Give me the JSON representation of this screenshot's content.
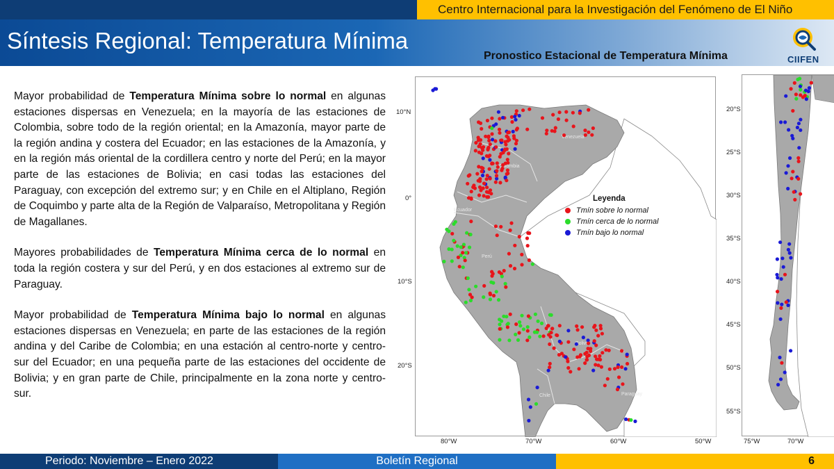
{
  "header": {
    "organization": "Centro Internacional para la Investigación del Fenómeno de El Niño",
    "title": "Síntesis Regional: Temperatura Mínima",
    "map_heading": "Pronostico Estacional de Temperatura Mínima",
    "logo_text": "CIIFEN",
    "logo_icon": "magnifier-globe-icon"
  },
  "body": {
    "paragraphs": [
      {
        "pre": "Mayor probabilidad de ",
        "bold": "Temperatura Mínima sobre lo normal",
        "post": " en algunas estaciones dispersas en Venezuela; en la mayoría de las estaciones de Colombia, sobre todo de la región oriental; en la Amazonía, mayor parte de la región andina y costera del Ecuador; en las estaciones de la Amazonía, y en la región más oriental de la cordillera centro y norte del Perú; en la mayor parte de las estaciones de Bolivia; en casi todas las estaciones del Paraguay, con excepción del extremo sur; y en Chile en el Altiplano, Región de Coquimbo y parte alta de la Región de Valparaíso, Metropolitana y Región de Magallanes."
      },
      {
        "pre": "Mayores probabilidades de ",
        "bold": "Temperatura Mínima cerca de lo normal",
        "post": " en toda la región costera y sur del Perú, y en dos estaciones al extremo sur de Paraguay."
      },
      {
        "pre": "Mayor probabilidad de ",
        "bold": "Temperatura Mínima bajo lo normal",
        "post": " en algunas estaciones dispersas en Venezuela; en parte de las estaciones de la región andina y del Caribe de Colombia; en una estación al centro-norte y centro-sur del Ecuador; en una pequeña parte de las estaciones del occidente de Bolivia; y en gran parte de Chile, principalmente en la zona norte y centro-sur."
      }
    ]
  },
  "map_main": {
    "lat_labels": [
      "10°N",
      "0°",
      "10°S",
      "20°S"
    ],
    "lon_labels": [
      "80°W",
      "70°W",
      "60°W",
      "50°W"
    ],
    "country_labels": [
      "Venezuela",
      "Colombia",
      "Ecuador",
      "Perú",
      "Bolivia",
      "Chile",
      "Paraguay"
    ],
    "legend": {
      "title": "Leyenda",
      "items": [
        {
          "label": "Tmín sobre lo normal",
          "color": "#e8141b"
        },
        {
          "label": "Tmín cerca de lo normal",
          "color": "#2bdc2b"
        },
        {
          "label": "Tmín bajo lo normal",
          "color": "#1a1ad6"
        }
      ]
    }
  },
  "map_chile": {
    "lat_labels": [
      "20°S",
      "25°S",
      "30°S",
      "35°S",
      "40°S",
      "45°S",
      "50°S",
      "55°S"
    ],
    "lon_labels": [
      "75°W",
      "70°W"
    ]
  },
  "colors": {
    "land_region": "#a9a9a9",
    "land_other": "#ffffff",
    "sea": "#ffffff",
    "above": "#e8141b",
    "near": "#2bdc2b",
    "below": "#1a1ad6"
  },
  "footer": {
    "period": "Periodo: Noviembre – Enero 2022",
    "bulletin": "Boletín Regional",
    "page_number": "6"
  }
}
